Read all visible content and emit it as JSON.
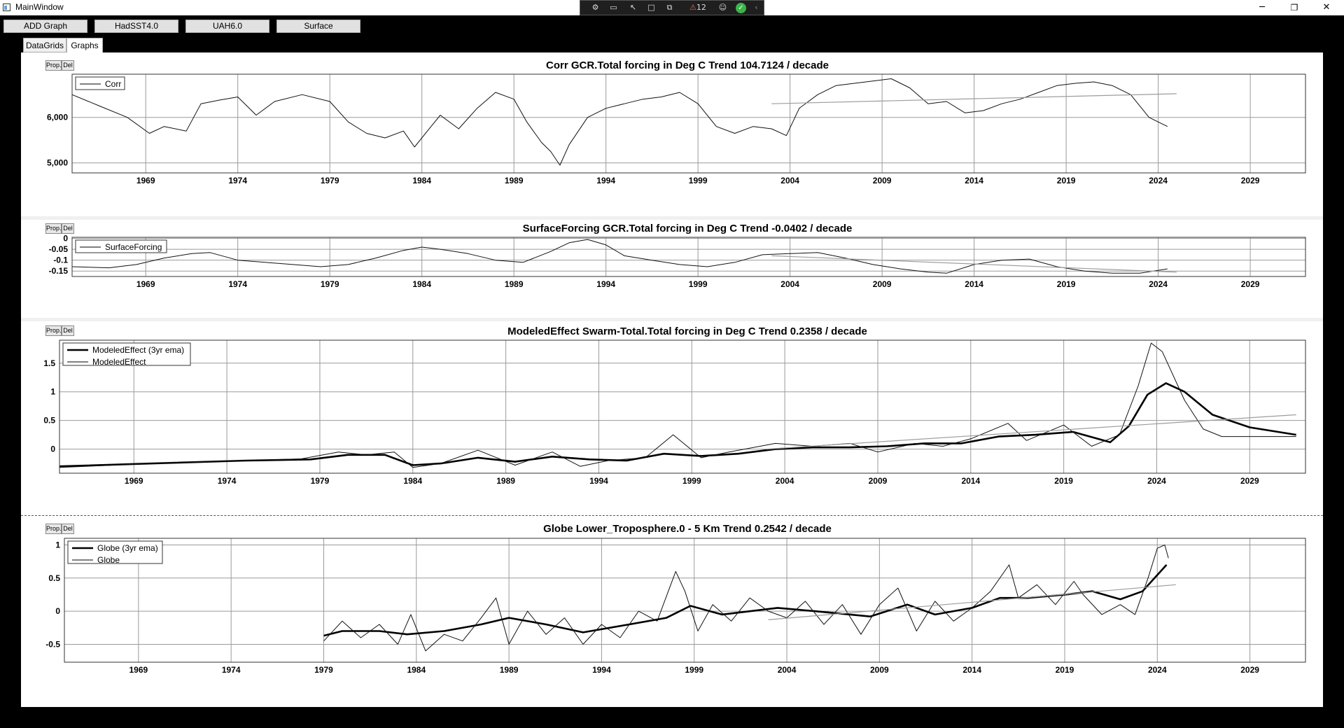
{
  "window": {
    "title": "MainWindow",
    "minimize": "─",
    "maximize": "❐",
    "close": "✕"
  },
  "overlay": {
    "badge_count": "12"
  },
  "toolbar": {
    "add_graph": "ADD Graph",
    "hadsst": "HadSST4.0",
    "uah": "UAH6.0",
    "surface": "Surface"
  },
  "tabs": {
    "datagrids": "DataGrids",
    "graphs": "Graphs"
  },
  "panel_buttons": {
    "prop": "Prop.",
    "del": "Del"
  },
  "chart_data": [
    {
      "type": "line",
      "title": "Corr GCR.Total forcing in Deg C Trend 104.7124 / decade",
      "xlim": [
        1965,
        2032
      ],
      "ylim": [
        4780,
        6950
      ],
      "xticks": [
        1969,
        1974,
        1979,
        1984,
        1989,
        1994,
        1999,
        2004,
        2009,
        2014,
        2019,
        2024,
        2029
      ],
      "yticks": [
        {
          "value": 5000,
          "label": "5,000"
        },
        {
          "value": 6000,
          "label": "6,000"
        }
      ],
      "legend": [
        "Corr"
      ],
      "series": [
        {
          "name": "Corr",
          "style": "thin",
          "x": [
            1965,
            1966.5,
            1968,
            1969.2,
            1970,
            1971.2,
            1972,
            1973,
            1974,
            1975,
            1976,
            1977.5,
            1979,
            1980,
            1981,
            1982,
            1983,
            1983.6,
            1984.5,
            1985,
            1986,
            1987,
            1988,
            1989,
            1989.7,
            1990.5,
            1991,
            1991.5,
            1992,
            1993,
            1994,
            1995,
            1996,
            1997,
            1998,
            1999,
            2000,
            2001,
            2002,
            2003,
            2003.8,
            2004.5,
            2005.5,
            2006.5,
            2007.5,
            2008.5,
            2009.5,
            2010.5,
            2011.5,
            2012.5,
            2013.5,
            2014.5,
            2015.5,
            2016.5,
            2017.5,
            2018.5,
            2019.5,
            2020.5,
            2021.5,
            2022.5,
            2023.5,
            2024.5
          ],
          "y": [
            6500,
            6250,
            6000,
            5650,
            5800,
            5700,
            6300,
            6380,
            6450,
            6050,
            6350,
            6500,
            6350,
            5900,
            5650,
            5550,
            5700,
            5350,
            5800,
            6050,
            5750,
            6200,
            6550,
            6400,
            5900,
            5450,
            5250,
            4950,
            5400,
            6000,
            6200,
            6300,
            6400,
            6450,
            6550,
            6300,
            5800,
            5650,
            5800,
            5750,
            5600,
            6200,
            6500,
            6700,
            6750,
            6800,
            6850,
            6650,
            6300,
            6350,
            6100,
            6150,
            6300,
            6400,
            6550,
            6700,
            6750,
            6780,
            6700,
            6500,
            6000,
            5800
          ]
        },
        {
          "name": "",
          "style": "trend",
          "x": [
            2003,
            2025
          ],
          "y": [
            6300,
            6520
          ]
        }
      ]
    },
    {
      "type": "line",
      "title": "SurfaceForcing GCR.Total forcing in Deg C Trend -0.0402 / decade",
      "xlim": [
        1965,
        2032
      ],
      "ylim": [
        -0.175,
        0.005
      ],
      "xticks": [
        1969,
        1974,
        1979,
        1984,
        1989,
        1994,
        1999,
        2004,
        2009,
        2014,
        2019,
        2024,
        2029
      ],
      "yticks": [
        {
          "value": 0,
          "label": "0"
        },
        {
          "value": -0.05,
          "label": "-0.05"
        },
        {
          "value": -0.1,
          "label": "-0.1"
        },
        {
          "value": -0.15,
          "label": "-0.15"
        }
      ],
      "legend": [
        "SurfaceForcing"
      ],
      "series": [
        {
          "name": "SurfaceForcing",
          "style": "thin",
          "x": [
            1965,
            1967,
            1968.5,
            1970,
            1971.5,
            1972.5,
            1974,
            1975.5,
            1977,
            1978.5,
            1980,
            1981.5,
            1983,
            1984,
            1985,
            1986.5,
            1988,
            1989.5,
            1991,
            1992,
            1993,
            1994,
            1995,
            1996.5,
            1998,
            1999.5,
            2001,
            2002.5,
            2004,
            2005.5,
            2007,
            2008.5,
            2010,
            2011.5,
            2012.5,
            2014,
            2015.5,
            2017,
            2018.5,
            2020,
            2021.5,
            2023,
            2024.5
          ],
          "y": [
            -0.13,
            -0.135,
            -0.12,
            -0.09,
            -0.07,
            -0.065,
            -0.1,
            -0.11,
            -0.12,
            -0.13,
            -0.12,
            -0.09,
            -0.055,
            -0.04,
            -0.05,
            -0.07,
            -0.1,
            -0.11,
            -0.06,
            -0.02,
            -0.005,
            -0.03,
            -0.08,
            -0.1,
            -0.12,
            -0.13,
            -0.11,
            -0.075,
            -0.07,
            -0.065,
            -0.09,
            -0.12,
            -0.14,
            -0.155,
            -0.16,
            -0.12,
            -0.1,
            -0.095,
            -0.13,
            -0.15,
            -0.16,
            -0.16,
            -0.14
          ]
        },
        {
          "name": "",
          "style": "trend",
          "x": [
            2003,
            2025
          ],
          "y": [
            -0.08,
            -0.155
          ]
        }
      ]
    },
    {
      "type": "line",
      "title": "ModeledEffect Swarm-Total.Total forcing in Deg C Trend 0.2358 / decade",
      "xlim": [
        1965,
        2032
      ],
      "ylim": [
        -0.42,
        1.9
      ],
      "xticks": [
        1969,
        1974,
        1979,
        1984,
        1989,
        1994,
        1999,
        2004,
        2009,
        2014,
        2019,
        2024,
        2029
      ],
      "yticks": [
        {
          "value": 0,
          "label": "0"
        },
        {
          "value": 0.5,
          "label": "0.5"
        },
        {
          "value": 1,
          "label": "1"
        },
        {
          "value": 1.5,
          "label": "1.5"
        }
      ],
      "legend": [
        "ModeledEffect (3yr ema)",
        "ModeledEffect"
      ],
      "series": [
        {
          "name": "ModeledEffect (3yr ema)",
          "style": "thick",
          "x": [
            1965,
            1970,
            1975,
            1978.5,
            1980.5,
            1982.5,
            1984,
            1985.5,
            1987.5,
            1989.5,
            1991.5,
            1993.5,
            1995.5,
            1997.5,
            1999.5,
            2001.5,
            2003.5,
            2005.5,
            2007.5,
            2009.5,
            2011.5,
            2013.5,
            2015.5,
            2017.5,
            2019.5,
            2021.5,
            2022.5,
            2023.5,
            2024.5,
            2025.5,
            2027,
            2029,
            2031.5
          ],
          "y": [
            -0.3,
            -0.25,
            -0.2,
            -0.18,
            -0.1,
            -0.1,
            -0.28,
            -0.25,
            -0.15,
            -0.22,
            -0.13,
            -0.18,
            -0.2,
            -0.08,
            -0.12,
            -0.08,
            0,
            0.03,
            0.03,
            0.05,
            0.1,
            0.1,
            0.22,
            0.25,
            0.3,
            0.12,
            0.4,
            0.95,
            1.15,
            1.0,
            0.6,
            0.38,
            0.25
          ]
        },
        {
          "name": "ModeledEffect",
          "style": "thin",
          "x": [
            1965,
            1970,
            1975,
            1978,
            1980,
            1981.5,
            1983,
            1984,
            1985.5,
            1987.5,
            1989.5,
            1991.5,
            1993,
            1994.5,
            1996.5,
            1998,
            1999.5,
            2001,
            2003.5,
            2005.5,
            2007.5,
            2009,
            2011,
            2012.5,
            2014,
            2016,
            2017,
            2019,
            2020.5,
            2022,
            2023,
            2023.7,
            2024.3,
            2025.5,
            2026.5,
            2027.5,
            2031.5
          ],
          "y": [
            -0.32,
            -0.25,
            -0.2,
            -0.17,
            -0.05,
            -0.1,
            -0.05,
            -0.32,
            -0.25,
            -0.02,
            -0.28,
            -0.05,
            -0.3,
            -0.2,
            -0.15,
            0.25,
            -0.15,
            -0.05,
            0.1,
            0.05,
            0.1,
            -0.05,
            0.1,
            0.05,
            0.18,
            0.45,
            0.15,
            0.42,
            0.05,
            0.25,
            1.1,
            1.85,
            1.7,
            0.85,
            0.35,
            0.22,
            0.22
          ]
        },
        {
          "name": "",
          "style": "trend",
          "x": [
            2003,
            2031.5
          ],
          "y": [
            0,
            0.6
          ]
        }
      ]
    },
    {
      "type": "line",
      "title": "Globe Lower_Troposphere.0 - 5 Km Trend 0.2542 / decade",
      "xlim": [
        1965,
        2032
      ],
      "ylim": [
        -0.77,
        1.1
      ],
      "xticks": [
        1969,
        1974,
        1979,
        1984,
        1989,
        1994,
        1999,
        2004,
        2009,
        2014,
        2019,
        2024,
        2029
      ],
      "yticks": [
        {
          "value": -0.5,
          "label": "-0.5"
        },
        {
          "value": 0,
          "label": "0"
        },
        {
          "value": 0.5,
          "label": "0.5"
        },
        {
          "value": 1,
          "label": "1"
        }
      ],
      "legend": [
        "Globe (3yr ema)",
        "Globe"
      ],
      "series": [
        {
          "name": "Globe (3yr ema)",
          "style": "thick",
          "x": [
            1979,
            1980,
            1982,
            1983.5,
            1985.5,
            1987.5,
            1989,
            1991,
            1993,
            1995.5,
            1997.5,
            1998.8,
            2000.5,
            2003.5,
            2005.5,
            2008.5,
            2010.5,
            2012,
            2014,
            2015.5,
            2017,
            2019,
            2020.5,
            2022,
            2023.2,
            2024.5
          ],
          "y": [
            -0.37,
            -0.3,
            -0.3,
            -0.35,
            -0.3,
            -0.2,
            -0.1,
            -0.2,
            -0.32,
            -0.2,
            -0.1,
            0.08,
            -0.05,
            0.05,
            0,
            -0.08,
            0.1,
            -0.05,
            0.05,
            0.2,
            0.2,
            0.25,
            0.3,
            0.18,
            0.3,
            0.7
          ]
        },
        {
          "name": "Globe",
          "style": "thin",
          "x": [
            1979,
            1980,
            1981,
            1982,
            1983,
            1983.7,
            1984.5,
            1985.5,
            1986.5,
            1987.5,
            1988.3,
            1989,
            1990,
            1991,
            1992,
            1993,
            1994,
            1995,
            1996,
            1997,
            1998,
            1998.5,
            1999.2,
            2000,
            2001,
            2002,
            2003,
            2004,
            2005,
            2006,
            2007,
            2008,
            2009,
            2010,
            2011,
            2012,
            2013,
            2014,
            2015,
            2016,
            2016.5,
            2017.5,
            2018.5,
            2019.5,
            2020,
            2021,
            2022,
            2022.8,
            2023.5,
            2024,
            2024.4,
            2024.6
          ],
          "y": [
            -0.45,
            -0.15,
            -0.4,
            -0.2,
            -0.5,
            -0.05,
            -0.6,
            -0.35,
            -0.45,
            -0.1,
            0.2,
            -0.5,
            0,
            -0.35,
            -0.1,
            -0.5,
            -0.2,
            -0.4,
            0,
            -0.15,
            0.6,
            0.3,
            -0.3,
            0.1,
            -0.15,
            0.2,
            0,
            -0.1,
            0.15,
            -0.2,
            0.1,
            -0.35,
            0.1,
            0.35,
            -0.3,
            0.15,
            -0.15,
            0.05,
            0.3,
            0.7,
            0.2,
            0.4,
            0.1,
            0.45,
            0.25,
            -0.05,
            0.1,
            -0.05,
            0.5,
            0.95,
            1.0,
            0.8
          ]
        },
        {
          "name": "",
          "style": "trend",
          "x": [
            2003,
            2025
          ],
          "y": [
            -0.13,
            0.4
          ]
        }
      ]
    }
  ]
}
